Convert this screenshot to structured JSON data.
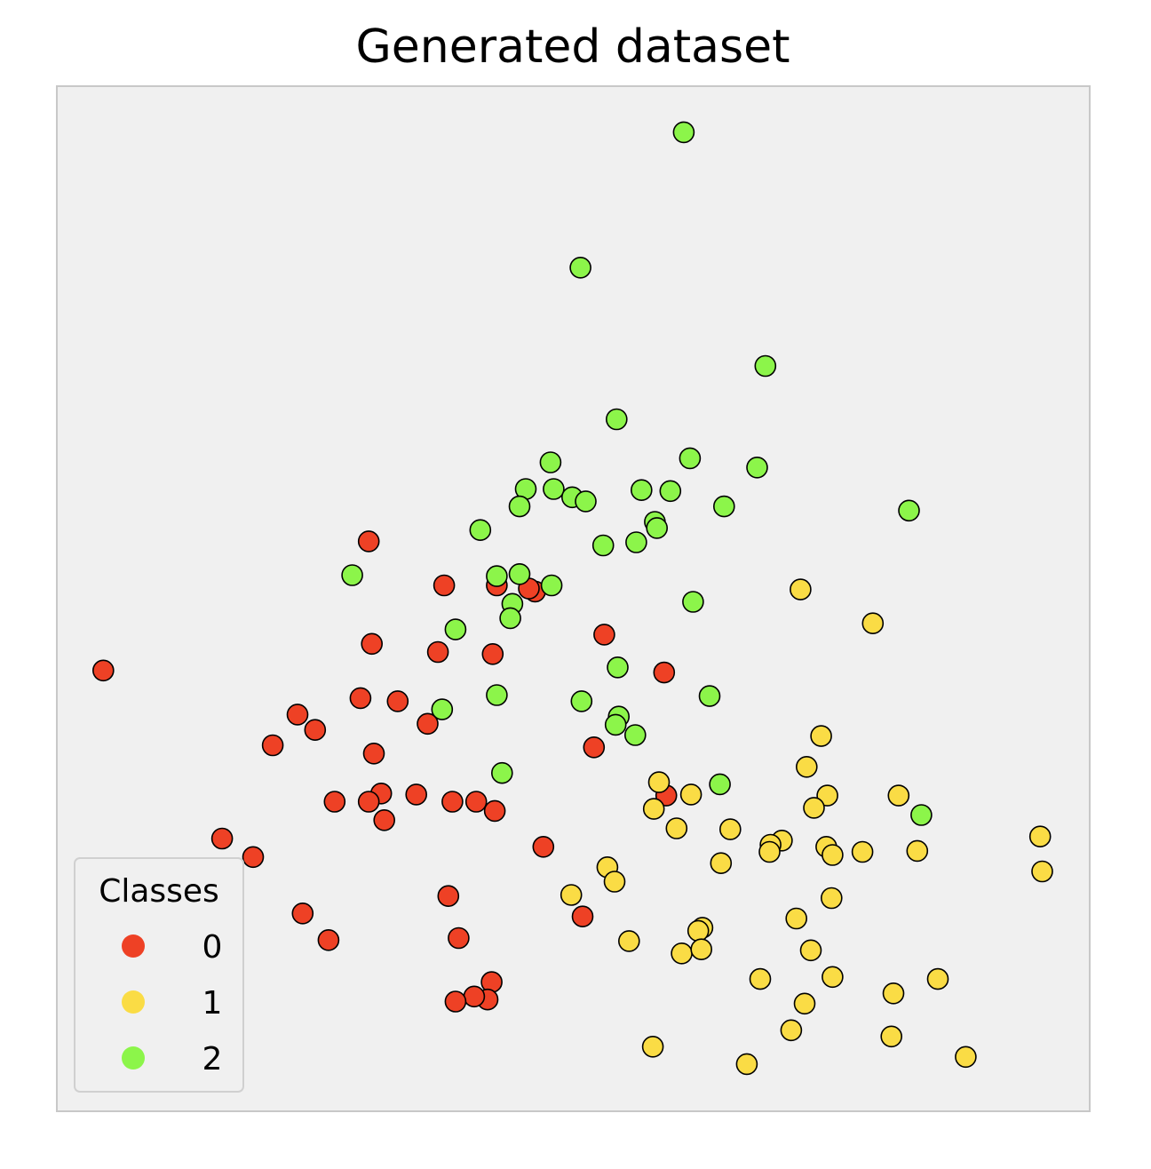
{
  "chart_data": {
    "type": "scatter",
    "title": "Generated dataset",
    "xlabel": "",
    "ylabel": "",
    "xlim": [
      0,
      100
    ],
    "ylim": [
      0,
      100
    ],
    "ticks_visible": false,
    "grid": false,
    "background_color": "#f0f0f0",
    "legend": {
      "title": "Classes",
      "placement": "lower-left",
      "entries": [
        {
          "label": "0",
          "color": "#ee4125"
        },
        {
          "label": "1",
          "color": "#fadc45"
        },
        {
          "label": "2",
          "color": "#8cf54a"
        }
      ]
    },
    "series": [
      {
        "name": "0",
        "color": "#ee4125",
        "points": [
          [
            4.5,
            43.0
          ],
          [
            30.2,
            55.6
          ],
          [
            37.5,
            51.3
          ],
          [
            42.6,
            51.3
          ],
          [
            46.3,
            50.7
          ],
          [
            30.5,
            45.6
          ],
          [
            36.9,
            44.8
          ],
          [
            42.2,
            44.6
          ],
          [
            53.0,
            46.5
          ],
          [
            58.8,
            42.8
          ],
          [
            29.4,
            40.3
          ],
          [
            23.3,
            38.7
          ],
          [
            25.0,
            37.2
          ],
          [
            33.0,
            40.0
          ],
          [
            35.9,
            37.8
          ],
          [
            52.0,
            35.5
          ],
          [
            20.9,
            35.7
          ],
          [
            30.7,
            34.9
          ],
          [
            31.4,
            31.0
          ],
          [
            26.9,
            30.2
          ],
          [
            30.2,
            30.2
          ],
          [
            34.8,
            30.9
          ],
          [
            38.3,
            30.2
          ],
          [
            40.6,
            30.2
          ],
          [
            42.4,
            29.3
          ],
          [
            31.7,
            28.4
          ],
          [
            16.0,
            26.6
          ],
          [
            19.0,
            24.8
          ],
          [
            47.1,
            25.8
          ],
          [
            37.9,
            21.0
          ],
          [
            23.8,
            19.3
          ],
          [
            59.0,
            30.8
          ],
          [
            50.9,
            19.0
          ],
          [
            26.3,
            16.7
          ],
          [
            38.9,
            16.9
          ],
          [
            42.1,
            12.6
          ],
          [
            41.7,
            10.9
          ],
          [
            40.4,
            11.2
          ],
          [
            38.6,
            10.7
          ],
          [
            45.7,
            51.0
          ]
        ]
      },
      {
        "name": "1",
        "color": "#fadc45",
        "points": [
          [
            72.0,
            50.9
          ],
          [
            79.0,
            47.6
          ],
          [
            58.3,
            32.1
          ],
          [
            61.4,
            30.9
          ],
          [
            74.0,
            36.6
          ],
          [
            72.6,
            33.6
          ],
          [
            74.6,
            30.8
          ],
          [
            60.0,
            27.6
          ],
          [
            65.2,
            27.5
          ],
          [
            70.2,
            26.4
          ],
          [
            74.5,
            25.8
          ],
          [
            69.1,
            26.0
          ],
          [
            64.3,
            24.2
          ],
          [
            49.8,
            21.1
          ],
          [
            53.3,
            23.8
          ],
          [
            54.0,
            22.4
          ],
          [
            75.1,
            25.0
          ],
          [
            78.0,
            25.3
          ],
          [
            83.3,
            25.4
          ],
          [
            95.2,
            26.8
          ],
          [
            95.4,
            23.4
          ],
          [
            71.6,
            18.8
          ],
          [
            75.0,
            20.8
          ],
          [
            73.0,
            15.7
          ],
          [
            62.5,
            17.9
          ],
          [
            62.1,
            17.6
          ],
          [
            55.4,
            16.6
          ],
          [
            60.5,
            15.4
          ],
          [
            62.4,
            15.8
          ],
          [
            68.1,
            12.9
          ],
          [
            72.4,
            10.5
          ],
          [
            85.3,
            12.9
          ],
          [
            75.1,
            13.1
          ],
          [
            71.1,
            7.9
          ],
          [
            66.8,
            4.6
          ],
          [
            81.0,
            11.5
          ],
          [
            80.8,
            7.3
          ],
          [
            88.0,
            5.3
          ],
          [
            57.7,
            6.3
          ],
          [
            69.0,
            25.3
          ],
          [
            57.8,
            29.5
          ],
          [
            81.5,
            30.8
          ],
          [
            73.3,
            29.6
          ]
        ]
      },
      {
        "name": "2",
        "color": "#8cf54a",
        "points": [
          [
            60.7,
            95.5
          ],
          [
            50.7,
            82.3
          ],
          [
            68.6,
            72.7
          ],
          [
            54.2,
            67.5
          ],
          [
            61.3,
            63.7
          ],
          [
            67.8,
            62.8
          ],
          [
            47.8,
            63.3
          ],
          [
            45.4,
            60.7
          ],
          [
            48.1,
            60.7
          ],
          [
            49.9,
            59.9
          ],
          [
            51.2,
            59.5
          ],
          [
            56.6,
            60.6
          ],
          [
            59.4,
            60.5
          ],
          [
            44.8,
            59.0
          ],
          [
            64.6,
            59.0
          ],
          [
            82.5,
            58.6
          ],
          [
            41.0,
            56.7
          ],
          [
            57.9,
            57.5
          ],
          [
            58.1,
            56.9
          ],
          [
            52.9,
            55.2
          ],
          [
            56.1,
            55.5
          ],
          [
            44.8,
            52.4
          ],
          [
            42.6,
            52.2
          ],
          [
            28.6,
            52.3
          ],
          [
            47.9,
            51.3
          ],
          [
            44.1,
            49.5
          ],
          [
            61.6,
            49.7
          ],
          [
            43.9,
            48.1
          ],
          [
            38.6,
            47.0
          ],
          [
            54.3,
            43.3
          ],
          [
            63.2,
            40.5
          ],
          [
            42.6,
            40.6
          ],
          [
            37.3,
            39.2
          ],
          [
            50.8,
            40.0
          ],
          [
            54.4,
            38.5
          ],
          [
            54.1,
            37.7
          ],
          [
            56.0,
            36.7
          ],
          [
            43.1,
            33.0
          ],
          [
            64.2,
            31.9
          ],
          [
            83.7,
            28.9
          ]
        ]
      }
    ]
  }
}
